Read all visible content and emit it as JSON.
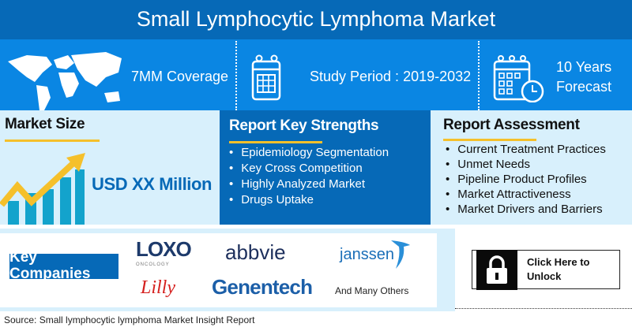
{
  "title": "Small Lymphocytic Lymphoma Market",
  "features": {
    "coverage": "7MM Coverage",
    "study_period": "Study Period : 2019-2032",
    "forecast_line1": "10 Years",
    "forecast_line2": "Forecast"
  },
  "market_size": {
    "heading": "Market Size",
    "value": "USD XX Million"
  },
  "key_strengths": {
    "heading": "Report Key Strengths",
    "items": [
      "Epidemiology Segmentation",
      "Key Cross Competition",
      "Highly Analyzed Market",
      "Drugs Uptake"
    ]
  },
  "assessment": {
    "heading": "Report Assessment",
    "items": [
      "Current Treatment Practices",
      "Unmet Needs",
      "Pipeline Product Profiles",
      "Market Attractiveness",
      "Market Drivers and Barriers"
    ]
  },
  "companies": {
    "label": "Key Companies",
    "logos": [
      "LOXO",
      "ONCOLOGY",
      "Lilly",
      "abbvie",
      "janssen",
      "Genentech"
    ],
    "others": "And Many Others"
  },
  "unlock": {
    "line1": "Click Here to",
    "line2": "Unlock"
  },
  "source": "Source: Small lymphocytic lymphoma Market Insight Report",
  "colors": {
    "dark_blue": "#0669b7",
    "bright_blue": "#0a86e3",
    "light_blue": "#d8f0fc",
    "accent_yellow": "#f5c02b"
  }
}
